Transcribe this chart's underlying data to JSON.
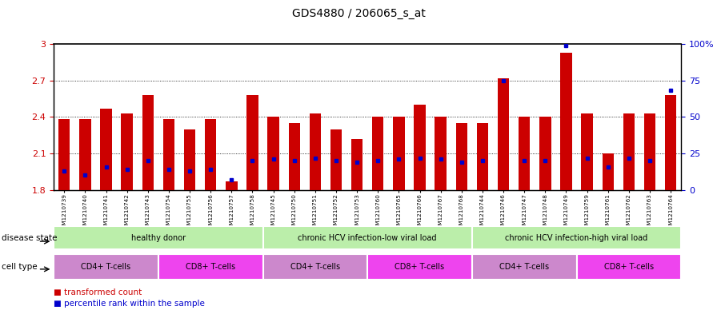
{
  "title": "GDS4880 / 206065_s_at",
  "samples": [
    "GSM1210739",
    "GSM1210740",
    "GSM1210741",
    "GSM1210742",
    "GSM1210743",
    "GSM1210754",
    "GSM1210755",
    "GSM1210756",
    "GSM1210757",
    "GSM1210758",
    "GSM1210745",
    "GSM1210750",
    "GSM1210751",
    "GSM1210752",
    "GSM1210753",
    "GSM1210760",
    "GSM1210765",
    "GSM1210766",
    "GSM1210767",
    "GSM1210768",
    "GSM1210744",
    "GSM1210746",
    "GSM1210747",
    "GSM1210748",
    "GSM1210749",
    "GSM1210759",
    "GSM1210761",
    "GSM1210762",
    "GSM1210763",
    "GSM1210764"
  ],
  "transformed_count": [
    2.38,
    2.38,
    2.47,
    2.43,
    2.58,
    2.38,
    2.3,
    2.38,
    1.87,
    2.58,
    2.4,
    2.35,
    2.43,
    2.3,
    2.22,
    2.4,
    2.4,
    2.5,
    2.4,
    2.35,
    2.35,
    2.72,
    2.4,
    2.4,
    2.93,
    2.43,
    2.1,
    2.43,
    2.43,
    2.58
  ],
  "percentile_rank": [
    13,
    10,
    16,
    14,
    20,
    14,
    13,
    14,
    7,
    20,
    21,
    20,
    22,
    20,
    19,
    20,
    21,
    22,
    21,
    19,
    20,
    75,
    20,
    20,
    99,
    22,
    16,
    22,
    20,
    68
  ],
  "ymin": 1.8,
  "ymax": 3.0,
  "y2min": 0,
  "y2max": 100,
  "bar_color": "#cc0000",
  "blue_color": "#0000cc",
  "disease_groups": [
    {
      "label": "healthy donor",
      "start": 0,
      "end": 9
    },
    {
      "label": "chronic HCV infection-low viral load",
      "start": 10,
      "end": 19
    },
    {
      "label": "chronic HCV infection-high viral load",
      "start": 20,
      "end": 29
    }
  ],
  "cell_type_groups": [
    {
      "label": "CD4+ T-cells",
      "start": 0,
      "end": 4,
      "cd4": true
    },
    {
      "label": "CD8+ T-cells",
      "start": 5,
      "end": 9,
      "cd4": false
    },
    {
      "label": "CD4+ T-cells",
      "start": 10,
      "end": 14,
      "cd4": true
    },
    {
      "label": "CD8+ T-cells",
      "start": 15,
      "end": 19,
      "cd4": false
    },
    {
      "label": "CD4+ T-cells",
      "start": 20,
      "end": 24,
      "cd4": true
    },
    {
      "label": "CD8+ T-cells",
      "start": 25,
      "end": 29,
      "cd4": false
    }
  ],
  "disease_color": "#bbeeaa",
  "cd4_color": "#cc88cc",
  "cd8_color": "#ee44ee",
  "bg_color": "#ffffff",
  "left_tick_color": "#cc0000",
  "right_tick_color": "#0000cc"
}
